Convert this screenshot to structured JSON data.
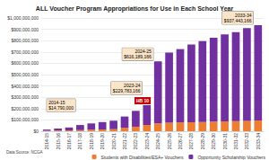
{
  "chart_data": {
    "type": "bar",
    "title": "ALL Voucher Program Appropriations for Use in Each School Year",
    "categories": [
      "2014-15",
      "2015-16",
      "2016-17",
      "2017-18",
      "2018-19",
      "2019-20",
      "2020-21",
      "2021-22",
      "2022-23",
      "2023-24",
      "2024-25",
      "2025-26",
      "2026-27",
      "2027-28",
      "2028-29",
      "2029-30",
      "2030-31",
      "2031-32",
      "2032-33",
      "2033-34"
    ],
    "series": [
      {
        "name": "Students with Disabilities/ESA+ Vouchers",
        "color": "#ed7d31",
        "values": [
          4000000,
          6000000,
          8000000,
          10000000,
          14000000,
          16000000,
          18000000,
          30000000,
          40000000,
          55000000,
          70000000,
          75000000,
          78000000,
          80000000,
          82000000,
          85000000,
          88000000,
          90000000,
          92000000,
          95000000
        ]
      },
      {
        "name": "Opportunity Scholarship Vouchers",
        "color": "#7030a0",
        "values": [
          10790000,
          18000000,
          25000000,
          45000000,
          55000000,
          65000000,
          75000000,
          100000000,
          140000000,
          174783166,
          546189166,
          620000000,
          647000000,
          685000000,
          713000000,
          740000000,
          767000000,
          785000000,
          818000000,
          842443166
        ]
      }
    ],
    "stacked": true,
    "ylim": [
      0,
      1000000000
    ],
    "yticks": [
      {
        "value": 0,
        "label": "$0"
      },
      {
        "value": 100000000,
        "label": "$100,000,000"
      },
      {
        "value": 200000000,
        "label": "$200,000,000"
      },
      {
        "value": 300000000,
        "label": "$300,000,000"
      },
      {
        "value": 400000000,
        "label": "$400,000,000"
      },
      {
        "value": 500000000,
        "label": "$500,000,000"
      },
      {
        "value": 600000000,
        "label": "$600,000,000"
      },
      {
        "value": 700000000,
        "label": "$700,000,000"
      },
      {
        "value": 800000000,
        "label": "$800,000,000"
      },
      {
        "value": 900000000,
        "label": "$900,000,000"
      },
      {
        "value": 1000000000,
        "label": "$1,000,000,000"
      }
    ],
    "grid": true,
    "legend": "bottom",
    "annotations": [
      {
        "text": "2014-15\n$14,790,000",
        "category": "2014-15"
      },
      {
        "text": "2023-24\n$229,783,166",
        "category": "2023-24"
      },
      {
        "text": "HB 10",
        "category": "2023-24",
        "color": "#c00000"
      },
      {
        "text": "2024-25\n$616,189,166",
        "category": "2024-25"
      },
      {
        "text": "2033-34\n$937,443,166",
        "category": "2033-34"
      }
    ],
    "source": "Data Source: NCGA"
  }
}
